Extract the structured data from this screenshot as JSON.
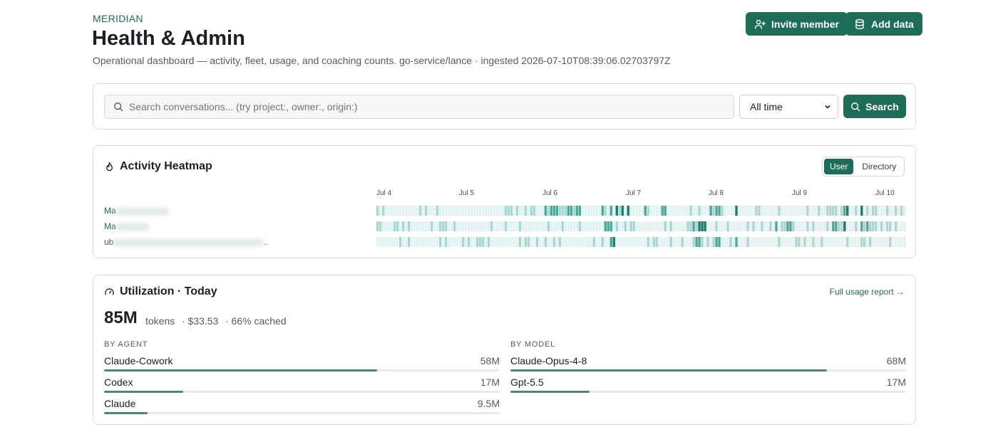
{
  "header": {
    "brand": "MERIDIAN",
    "title": "Health & Admin",
    "subtitle": "Operational dashboard — activity, fleet, usage, and coaching counts. go-service/lance · ingested 2026-07-10T08:39:06.02703797Z",
    "invite_label": "Invite member",
    "add_data_label": "Add data"
  },
  "search": {
    "placeholder": "Search conversations... (try project:, owner:, origin:)",
    "range_value": "All time",
    "button_label": "Search"
  },
  "heatmap": {
    "title": "Activity Heatmap",
    "toggle": [
      "User",
      "Directory"
    ],
    "active_toggle": "User",
    "days": [
      "Jul 4",
      "Jul 5",
      "Jul 6",
      "Jul 7",
      "Jul 8",
      "Jul 9",
      "Jul 10"
    ],
    "rows": [
      {
        "name_prefix": "Ma",
        "suffix": ""
      },
      {
        "name_prefix": "Ma",
        "suffix": ""
      },
      {
        "name_prefix": "ub",
        "suffix": ".."
      }
    ],
    "colors": {
      "light": "#e3f2f0",
      "mid": "#a9d6ce",
      "dark": "#4ea699",
      "darkest": "#1c7a6a"
    }
  },
  "utilization": {
    "title": "Utilization · Today",
    "total": "85M",
    "total_unit": "tokens",
    "cost": "· $33.53",
    "cached": "· 66% cached",
    "report_link": "Full usage report →",
    "by_agent_label": "BY AGENT",
    "by_model_label": "BY MODEL",
    "agents": [
      {
        "name": "Claude-Cowork",
        "value": "58M",
        "fraction": 0.69
      },
      {
        "name": "Codex",
        "value": "17M",
        "fraction": 0.2
      },
      {
        "name": "Claude",
        "value": "9.5M",
        "fraction": 0.11
      }
    ],
    "models": [
      {
        "name": "Claude-Opus-4-8",
        "value": "68M",
        "fraction": 0.8
      },
      {
        "name": "Gpt-5.5",
        "value": "17M",
        "fraction": 0.2
      }
    ]
  }
}
